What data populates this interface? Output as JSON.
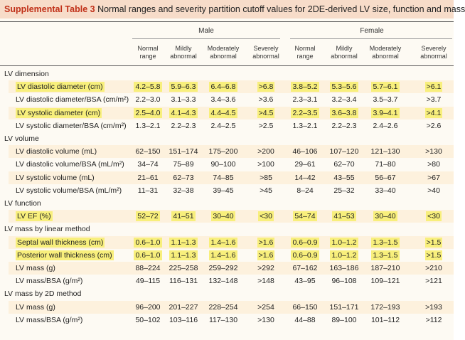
{
  "title": {
    "label": "Supplemental Table 3",
    "caption": "Normal ranges and severity partition cutoff values for 2DE-derived LV size, function and mass"
  },
  "groups": {
    "male": "Male",
    "female": "Female"
  },
  "columns": [
    [
      "Normal",
      "range"
    ],
    [
      "Mildly",
      "abnormal"
    ],
    [
      "Moderately",
      "abnormal"
    ],
    [
      "Severely",
      "abnormal"
    ],
    [
      "Normal",
      "range"
    ],
    [
      "Mildly",
      "abnormal"
    ],
    [
      "Moderately",
      "abnormal"
    ],
    [
      "Severely",
      "abnormal"
    ]
  ],
  "sections": [
    {
      "title": "LV dimension",
      "rows": [
        {
          "label": "LV diastolic diameter (cm)",
          "highlight": true,
          "values": [
            "4.2–5.8",
            "5.9–6.3",
            "6.4–6.8",
            ">6.8",
            "3.8–5.2",
            "5.3–5.6",
            "5.7–6.1",
            ">6.1"
          ]
        },
        {
          "label": "LV diastolic diameter/BSA (cm/m²)",
          "highlight": false,
          "values": [
            "2.2–3.0",
            "3.1–3.3",
            "3.4–3.6",
            ">3.6",
            "2.3–3.1",
            "3.2–3.4",
            "3.5–3.7",
            ">3.7"
          ]
        },
        {
          "label": "LV systolic diameter (cm)",
          "highlight": true,
          "values": [
            "2.5–4.0",
            "4.1–4.3",
            "4.4–4.5",
            ">4.5",
            "2.2–3.5",
            "3.6–3.8",
            "3.9–4.1",
            ">4.1"
          ]
        },
        {
          "label": "LV systolic diameter/BSA (cm/m²)",
          "highlight": false,
          "values": [
            "1.3–2.1",
            "2.2–2.3",
            "2.4–2.5",
            ">2.5",
            "1.3–2.1",
            "2.2–2.3",
            "2.4–2.6",
            ">2.6"
          ]
        }
      ]
    },
    {
      "title": "LV volume",
      "rows": [
        {
          "label": "LV diastolic volume (mL)",
          "highlight": false,
          "values": [
            "62–150",
            "151–174",
            "175–200",
            ">200",
            "46–106",
            "107–120",
            "121–130",
            ">130"
          ]
        },
        {
          "label": "LV diastolic volume/BSA (mL/m²)",
          "highlight": false,
          "values": [
            "34–74",
            "75–89",
            "90–100",
            ">100",
            "29–61",
            "62–70",
            "71–80",
            ">80"
          ]
        },
        {
          "label": "LV systolic volume (mL)",
          "highlight": false,
          "values": [
            "21–61",
            "62–73",
            "74–85",
            ">85",
            "14–42",
            "43–55",
            "56–67",
            ">67"
          ]
        },
        {
          "label": "LV systolic volume/BSA (mL/m²)",
          "highlight": false,
          "values": [
            "11–31",
            "32–38",
            "39–45",
            ">45",
            "8–24",
            "25–32",
            "33–40",
            ">40"
          ]
        }
      ]
    },
    {
      "title": "LV function",
      "rows": [
        {
          "label": "LV EF (%)",
          "highlight": true,
          "values": [
            "52–72",
            "41–51",
            "30–40",
            "<30",
            "54–74",
            "41–53",
            "30–40",
            "<30"
          ]
        }
      ]
    },
    {
      "title": "LV mass by linear method",
      "rows": [
        {
          "label": "Septal wall thickness (cm)",
          "highlight": true,
          "values": [
            "0.6–1.0",
            "1.1–1.3",
            "1.4–1.6",
            ">1.6",
            "0.6–0.9",
            "1.0–1.2",
            "1.3–1.5",
            ">1.5"
          ]
        },
        {
          "label": "Posterior wall thickness (cm)",
          "highlight": true,
          "values": [
            "0.6–1.0",
            "1.1–1.3",
            "1.4–1.6",
            ">1.6",
            "0.6–0.9",
            "1.0–1.2",
            "1.3–1.5",
            ">1.5"
          ]
        },
        {
          "label": "LV mass (g)",
          "highlight": false,
          "values": [
            "88–224",
            "225–258",
            "259–292",
            ">292",
            "67–162",
            "163–186",
            "187–210",
            ">210"
          ]
        },
        {
          "label": "LV mass/BSA (g/m²)",
          "highlight": false,
          "values": [
            "49–115",
            "116–131",
            "132–148",
            ">148",
            "43–95",
            "96–108",
            "109–121",
            ">121"
          ]
        }
      ]
    },
    {
      "title": "LV mass by 2D method",
      "rows": [
        {
          "label": "LV mass (g)",
          "highlight": false,
          "values": [
            "96–200",
            "201–227",
            "228–254",
            ">254",
            "66–150",
            "151–171",
            "172–193",
            ">193"
          ]
        },
        {
          "label": "LV mass/BSA (g/m²)",
          "highlight": false,
          "values": [
            "50–102",
            "103–116",
            "117–130",
            ">130",
            "44–88",
            "89–100",
            "101–112",
            ">112"
          ]
        }
      ]
    }
  ],
  "colors": {
    "title_label": "#c03018",
    "title_band": "#f7dcc9",
    "row_band": "#fdf1dd",
    "highlight": "#f8ef7c"
  }
}
